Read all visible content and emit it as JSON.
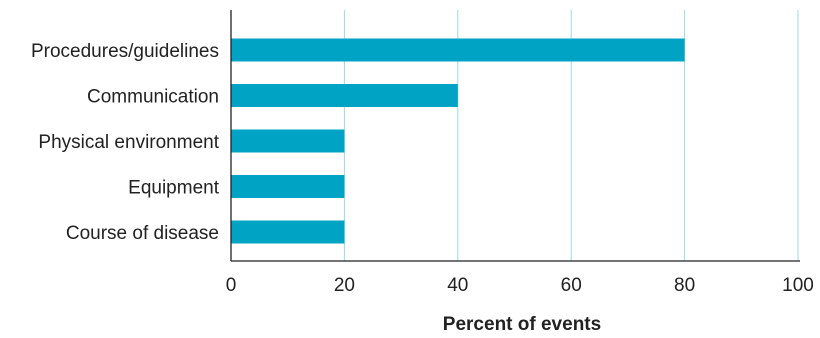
{
  "chart_data": {
    "type": "bar",
    "orientation": "horizontal",
    "categories": [
      "Procedures/guidelines",
      "Communication",
      "Physical environment",
      "Equipment",
      "Course of disease"
    ],
    "values": [
      80,
      40,
      20,
      20,
      20
    ],
    "title": "",
    "xlabel": "Percent of events",
    "ylabel": "",
    "xlim": [
      0,
      100
    ],
    "xticks": [
      0,
      20,
      40,
      60,
      80,
      100
    ],
    "xtick_labels": [
      "0",
      "20",
      "40",
      "60",
      "80",
      "100"
    ],
    "grid": "vertical",
    "colors": {
      "bar": "#00a3c4",
      "grid": "#9fd8e3",
      "axis": "#222222",
      "text": "#222222"
    }
  }
}
